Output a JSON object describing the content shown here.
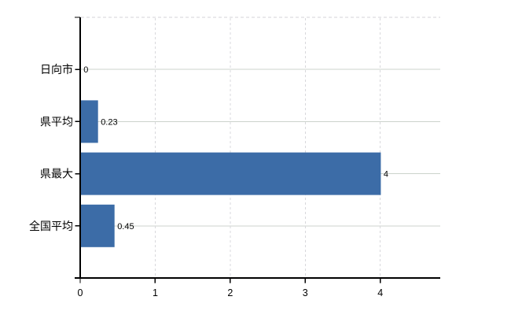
{
  "chart_data": {
    "type": "bar",
    "orientation": "horizontal",
    "title": "",
    "xlabel": "",
    "ylabel": "",
    "categories": [
      "日向市",
      "県平均",
      "県最大",
      "全国平均"
    ],
    "values": [
      0,
      0.23,
      4,
      0.45
    ],
    "value_labels": [
      "0",
      "0.23",
      "4",
      "0.45"
    ],
    "x_tick_labels": [
      "0",
      "1",
      "2",
      "3",
      "4"
    ],
    "x_tick_values": [
      0,
      1,
      2,
      3,
      4
    ],
    "xlim": [
      0,
      4.8
    ],
    "grid": true,
    "legend_visible": false,
    "colors": {
      "bar": "#3c6ca7",
      "horizontal_gridline": "#ccd3cc",
      "vertical_gridline": "#d8d8dc",
      "top_border": "#d5d3d7",
      "axis": "#000000",
      "text": "#000000",
      "background": "#ffffff"
    }
  }
}
